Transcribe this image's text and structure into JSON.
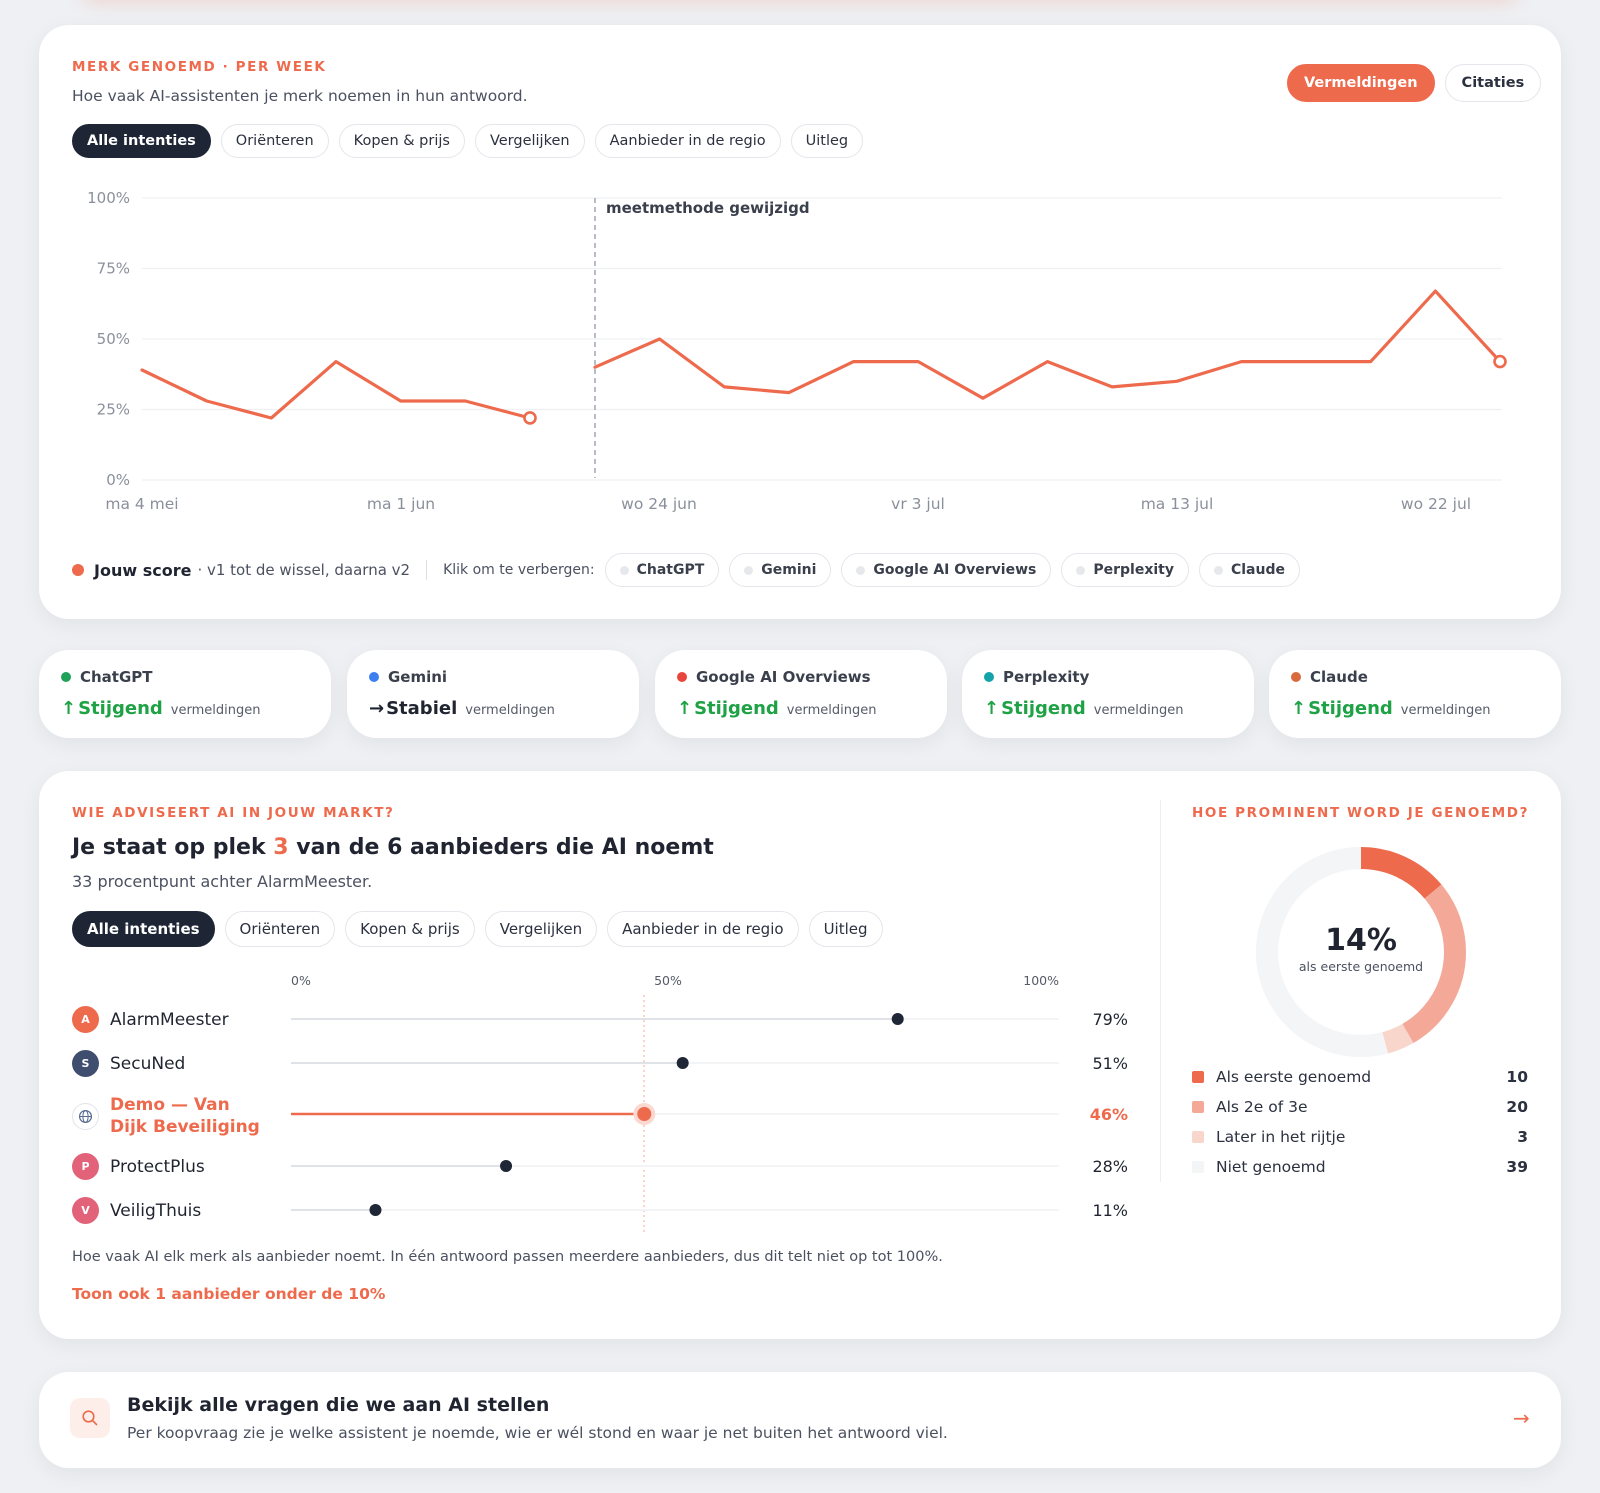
{
  "trend_card": {
    "eyebrow": "MERK GENOEMD · PER WEEK",
    "subtitle": "Hoe vaak AI-assistenten je merk noemen in hun antwoord.",
    "toggle": [
      "Vermeldingen",
      "Citaties"
    ],
    "intent_tabs": [
      "Alle intenties",
      "Oriënteren",
      "Kopen & prijs",
      "Vergelijken",
      "Aanbieder in de regio",
      "Uitleg"
    ],
    "annotation": "meetmethode gewijzigd",
    "legend": {
      "score_label": "Jouw score",
      "score_note": "· v1 tot de wissel, daarna v2",
      "hide_hint": "Klik om te verbergen:",
      "engines": [
        "ChatGPT",
        "Gemini",
        "Google AI Overviews",
        "Perplexity",
        "Claude"
      ]
    }
  },
  "chart_data": {
    "type": "line",
    "y_ticks": [
      "100%",
      "75%",
      "50%",
      "25%",
      "0%"
    ],
    "x_tick_labels": [
      "ma 4 mei",
      "ma 1 jun",
      "wo 24 jun",
      "vr 3 jul",
      "ma 13 jul",
      "wo 22 jul"
    ],
    "ylim": [
      0,
      100
    ],
    "series": [
      {
        "name": "v1",
        "values": [
          39,
          28,
          22,
          42,
          28,
          28,
          22
        ]
      },
      {
        "name": "v2",
        "values": [
          40,
          50,
          33,
          31,
          42,
          42,
          29,
          42,
          33,
          35,
          42,
          42,
          42,
          67,
          42
        ]
      }
    ],
    "colors": {
      "line": "#ee6a4d"
    }
  },
  "engine_cards": [
    {
      "name": "ChatGPT",
      "color": "#1fa25a",
      "trend_arrow": "↑",
      "trend": "Stijgend",
      "metric": "vermeldingen",
      "state": "up"
    },
    {
      "name": "Gemini",
      "color": "#3b7ff0",
      "trend_arrow": "→",
      "trend": "Stabiel",
      "metric": "vermeldingen",
      "state": "flat"
    },
    {
      "name": "Google AI Overviews",
      "color": "#e8463c",
      "trend_arrow": "↑",
      "trend": "Stijgend",
      "metric": "vermeldingen",
      "state": "up"
    },
    {
      "name": "Perplexity",
      "color": "#14a3a8",
      "trend_arrow": "↑",
      "trend": "Stijgend",
      "metric": "vermeldingen",
      "state": "up"
    },
    {
      "name": "Claude",
      "color": "#d96a3e",
      "trend_arrow": "↑",
      "trend": "Stijgend",
      "metric": "vermeldingen",
      "state": "up"
    }
  ],
  "market": {
    "eyebrow": "WIE ADVISEERT AI IN JOUW MARKT?",
    "title_pre": "Je staat op plek ",
    "title_rank": "3",
    "title_post": " van de 6 aanbieders die AI noemt",
    "subtitle": "33 procentpunt achter AlarmMeester.",
    "intent_tabs": [
      "Alle intenties",
      "Oriënteren",
      "Kopen & prijs",
      "Vergelijken",
      "Aanbieder in de regio",
      "Uitleg"
    ],
    "axis_labels": [
      "0%",
      "50%",
      "100%"
    ],
    "providers": [
      {
        "initial": "A",
        "name": "AlarmMeester",
        "value": 79,
        "label": "79%",
        "avatar_color": "#ee6a4d",
        "me": false
      },
      {
        "initial": "S",
        "name": "SecuNed",
        "value": 51,
        "label": "51%",
        "avatar_color": "#3f4e6e",
        "me": false
      },
      {
        "initial": "",
        "name": "Demo — Van Dijk Beveiliging",
        "value": 46,
        "label": "46%",
        "avatar_color": "#ffffff",
        "me": true
      },
      {
        "initial": "P",
        "name": "ProtectPlus",
        "value": 28,
        "label": "28%",
        "avatar_color": "#e2627a",
        "me": false
      },
      {
        "initial": "V",
        "name": "VeiligThuis",
        "value": 11,
        "label": "11%",
        "avatar_color": "#e2627a",
        "me": false
      }
    ],
    "note": "Hoe vaak AI elk merk als aanbieder noemt. In één antwoord passen meerdere aanbieders, dus dit telt niet op tot 100%.",
    "link": "Toon ook 1 aanbieder onder de 10%"
  },
  "prominence": {
    "eyebrow": "HOE PROMINENT WORD JE GENOEMD?",
    "center_value": "14%",
    "center_label": "als eerste genoemd",
    "segments": [
      {
        "label": "Als eerste genoemd",
        "count": 10,
        "color": "#ee6a4d"
      },
      {
        "label": "Als 2e of 3e",
        "count": 20,
        "color": "#f4a898"
      },
      {
        "label": "Later in het rijtje",
        "count": 3,
        "color": "#f9d6cc"
      },
      {
        "label": "Niet genoemd",
        "count": 39,
        "color": "#f4f5f7"
      }
    ]
  },
  "cta": {
    "icon": "search-icon",
    "title": "Bekijk alle vragen die we aan AI stellen",
    "subtitle": "Per koopvraag zie je welke assistent je noemde, wie er wél stond en waar je net buiten het antwoord viel.",
    "arrow": "→"
  }
}
